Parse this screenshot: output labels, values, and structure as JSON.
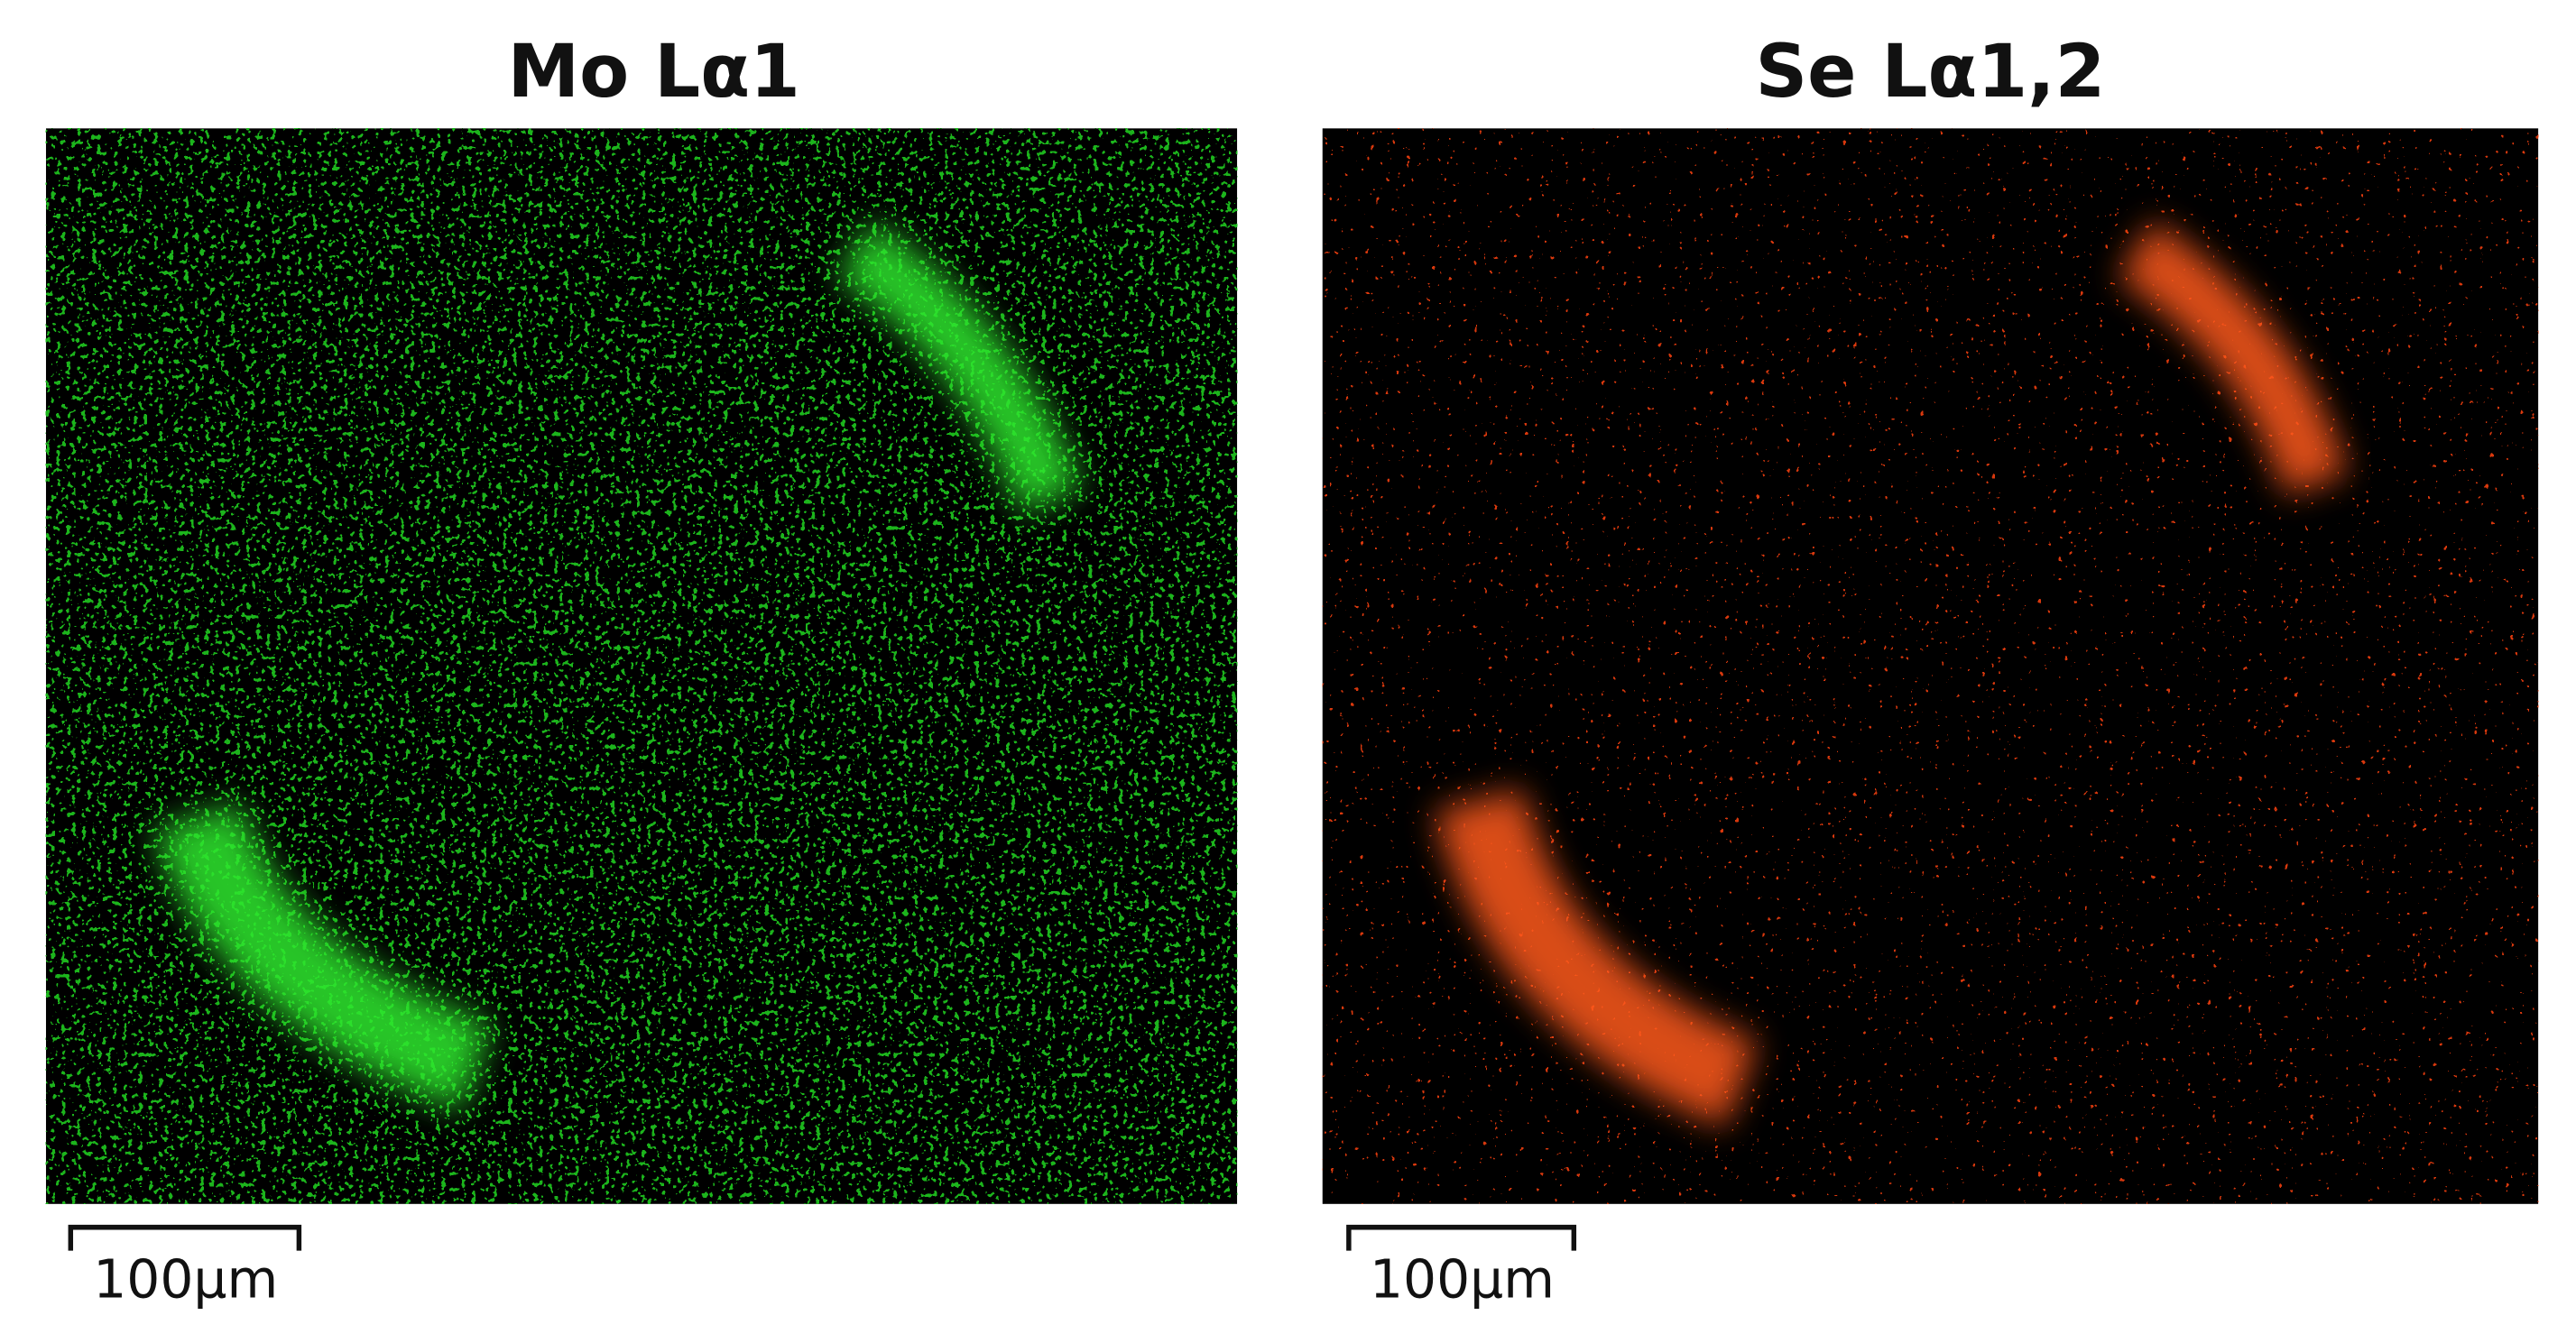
{
  "panels": [
    {
      "title": "Mo Lα1",
      "scale_bar": "100μm"
    },
    {
      "title": "Se Lα1,2",
      "scale_bar": "100μm"
    }
  ]
}
